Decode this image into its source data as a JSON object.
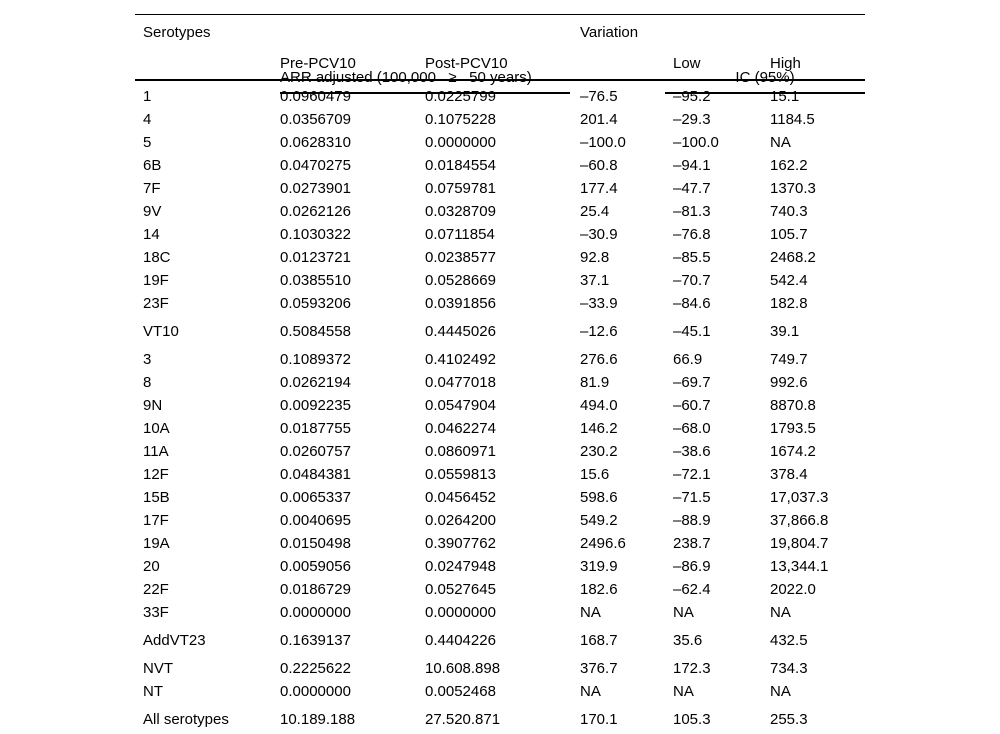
{
  "table": {
    "headers": {
      "serotypes": "Serotypes",
      "arr_group": "ARR adjusted (100,000   ≥   50 years)",
      "variation": "Variation",
      "ic_group": "IC (95%)",
      "pre": "Pre-PCV10",
      "post": "Post-PCV10",
      "low": "Low",
      "high": "High"
    },
    "rows": [
      {
        "serotype": "1",
        "pre": "0.0960479",
        "post": "0.0225799",
        "variation": "–76.5",
        "low": "–95.2",
        "high": "15.1",
        "gap_before": false
      },
      {
        "serotype": "4",
        "pre": "0.0356709",
        "post": "0.1075228",
        "variation": "201.4",
        "low": "–29.3",
        "high": "1184.5",
        "gap_before": false
      },
      {
        "serotype": "5",
        "pre": "0.0628310",
        "post": "0.0000000",
        "variation": "–100.0",
        "low": "–100.0",
        "high": "NA",
        "gap_before": false
      },
      {
        "serotype": "6B",
        "pre": "0.0470275",
        "post": "0.0184554",
        "variation": "–60.8",
        "low": "–94.1",
        "high": "162.2",
        "gap_before": false
      },
      {
        "serotype": "7F",
        "pre": "0.0273901",
        "post": "0.0759781",
        "variation": "177.4",
        "low": "–47.7",
        "high": "1370.3",
        "gap_before": false
      },
      {
        "serotype": "9V",
        "pre": "0.0262126",
        "post": "0.0328709",
        "variation": "25.4",
        "low": "–81.3",
        "high": "740.3",
        "gap_before": false
      },
      {
        "serotype": "14",
        "pre": "0.1030322",
        "post": "0.0711854",
        "variation": "–30.9",
        "low": "–76.8",
        "high": "105.7",
        "gap_before": false
      },
      {
        "serotype": "18C",
        "pre": "0.0123721",
        "post": "0.0238577",
        "variation": "92.8",
        "low": "–85.5",
        "high": "2468.2",
        "gap_before": false
      },
      {
        "serotype": "19F",
        "pre": "0.0385510",
        "post": "0.0528669",
        "variation": "37.1",
        "low": "–70.7",
        "high": "542.4",
        "gap_before": false
      },
      {
        "serotype": "23F",
        "pre": "0.0593206",
        "post": "0.0391856",
        "variation": "–33.9",
        "low": "–84.6",
        "high": "182.8",
        "gap_before": false
      },
      {
        "serotype": "VT10",
        "pre": "0.5084558",
        "post": "0.4445026",
        "variation": "–12.6",
        "low": "–45.1",
        "high": "39.1",
        "gap_before": true
      },
      {
        "serotype": "3",
        "pre": "0.1089372",
        "post": "0.4102492",
        "variation": "276.6",
        "low": "66.9",
        "high": "749.7",
        "gap_before": true
      },
      {
        "serotype": "8",
        "pre": "0.0262194",
        "post": "0.0477018",
        "variation": "81.9",
        "low": "–69.7",
        "high": "992.6",
        "gap_before": false
      },
      {
        "serotype": "9N",
        "pre": "0.0092235",
        "post": "0.0547904",
        "variation": "494.0",
        "low": "–60.7",
        "high": "8870.8",
        "gap_before": false
      },
      {
        "serotype": "10A",
        "pre": "0.0187755",
        "post": "0.0462274",
        "variation": "146.2",
        "low": "–68.0",
        "high": "1793.5",
        "gap_before": false
      },
      {
        "serotype": "11A",
        "pre": "0.0260757",
        "post": "0.0860971",
        "variation": "230.2",
        "low": "–38.6",
        "high": "1674.2",
        "gap_before": false
      },
      {
        "serotype": "12F",
        "pre": "0.0484381",
        "post": "0.0559813",
        "variation": "15.6",
        "low": "–72.1",
        "high": "378.4",
        "gap_before": false
      },
      {
        "serotype": "15B",
        "pre": "0.0065337",
        "post": "0.0456452",
        "variation": "598.6",
        "low": "–71.5",
        "high": "17,037.3",
        "gap_before": false
      },
      {
        "serotype": "17F",
        "pre": "0.0040695",
        "post": "0.0264200",
        "variation": "549.2",
        "low": "–88.9",
        "high": "37,866.8",
        "gap_before": false
      },
      {
        "serotype": "19A",
        "pre": "0.0150498",
        "post": "0.3907762",
        "variation": "2496.6",
        "low": "238.7",
        "high": "19,804.7",
        "gap_before": false
      },
      {
        "serotype": "20",
        "pre": "0.0059056",
        "post": "0.0247948",
        "variation": "319.9",
        "low": "–86.9",
        "high": "13,344.1",
        "gap_before": false
      },
      {
        "serotype": "22F",
        "pre": "0.0186729",
        "post": "0.0527645",
        "variation": "182.6",
        "low": "–62.4",
        "high": "2022.0",
        "gap_before": false
      },
      {
        "serotype": "33F",
        "pre": "0.0000000",
        "post": "0.0000000",
        "variation": "NA",
        "low": "NA",
        "high": "NA",
        "gap_before": false
      },
      {
        "serotype": "AddVT23",
        "pre": "0.1639137",
        "post": "0.4404226",
        "variation": "168.7",
        "low": "35.6",
        "high": "432.5",
        "gap_before": true
      },
      {
        "serotype": "NVT",
        "pre": "0.2225622",
        "post": "10.608.898",
        "variation": "376.7",
        "low": "172.3",
        "high": "734.3",
        "gap_before": true
      },
      {
        "serotype": "NT",
        "pre": "0.0000000",
        "post": "0.0052468",
        "variation": "NA",
        "low": "NA",
        "high": "NA",
        "gap_before": false
      },
      {
        "serotype": "All serotypes",
        "pre": "10.189.188",
        "post": "27.520.871",
        "variation": "170.1",
        "low": "105.3",
        "high": "255.3",
        "gap_before": true
      }
    ]
  }
}
